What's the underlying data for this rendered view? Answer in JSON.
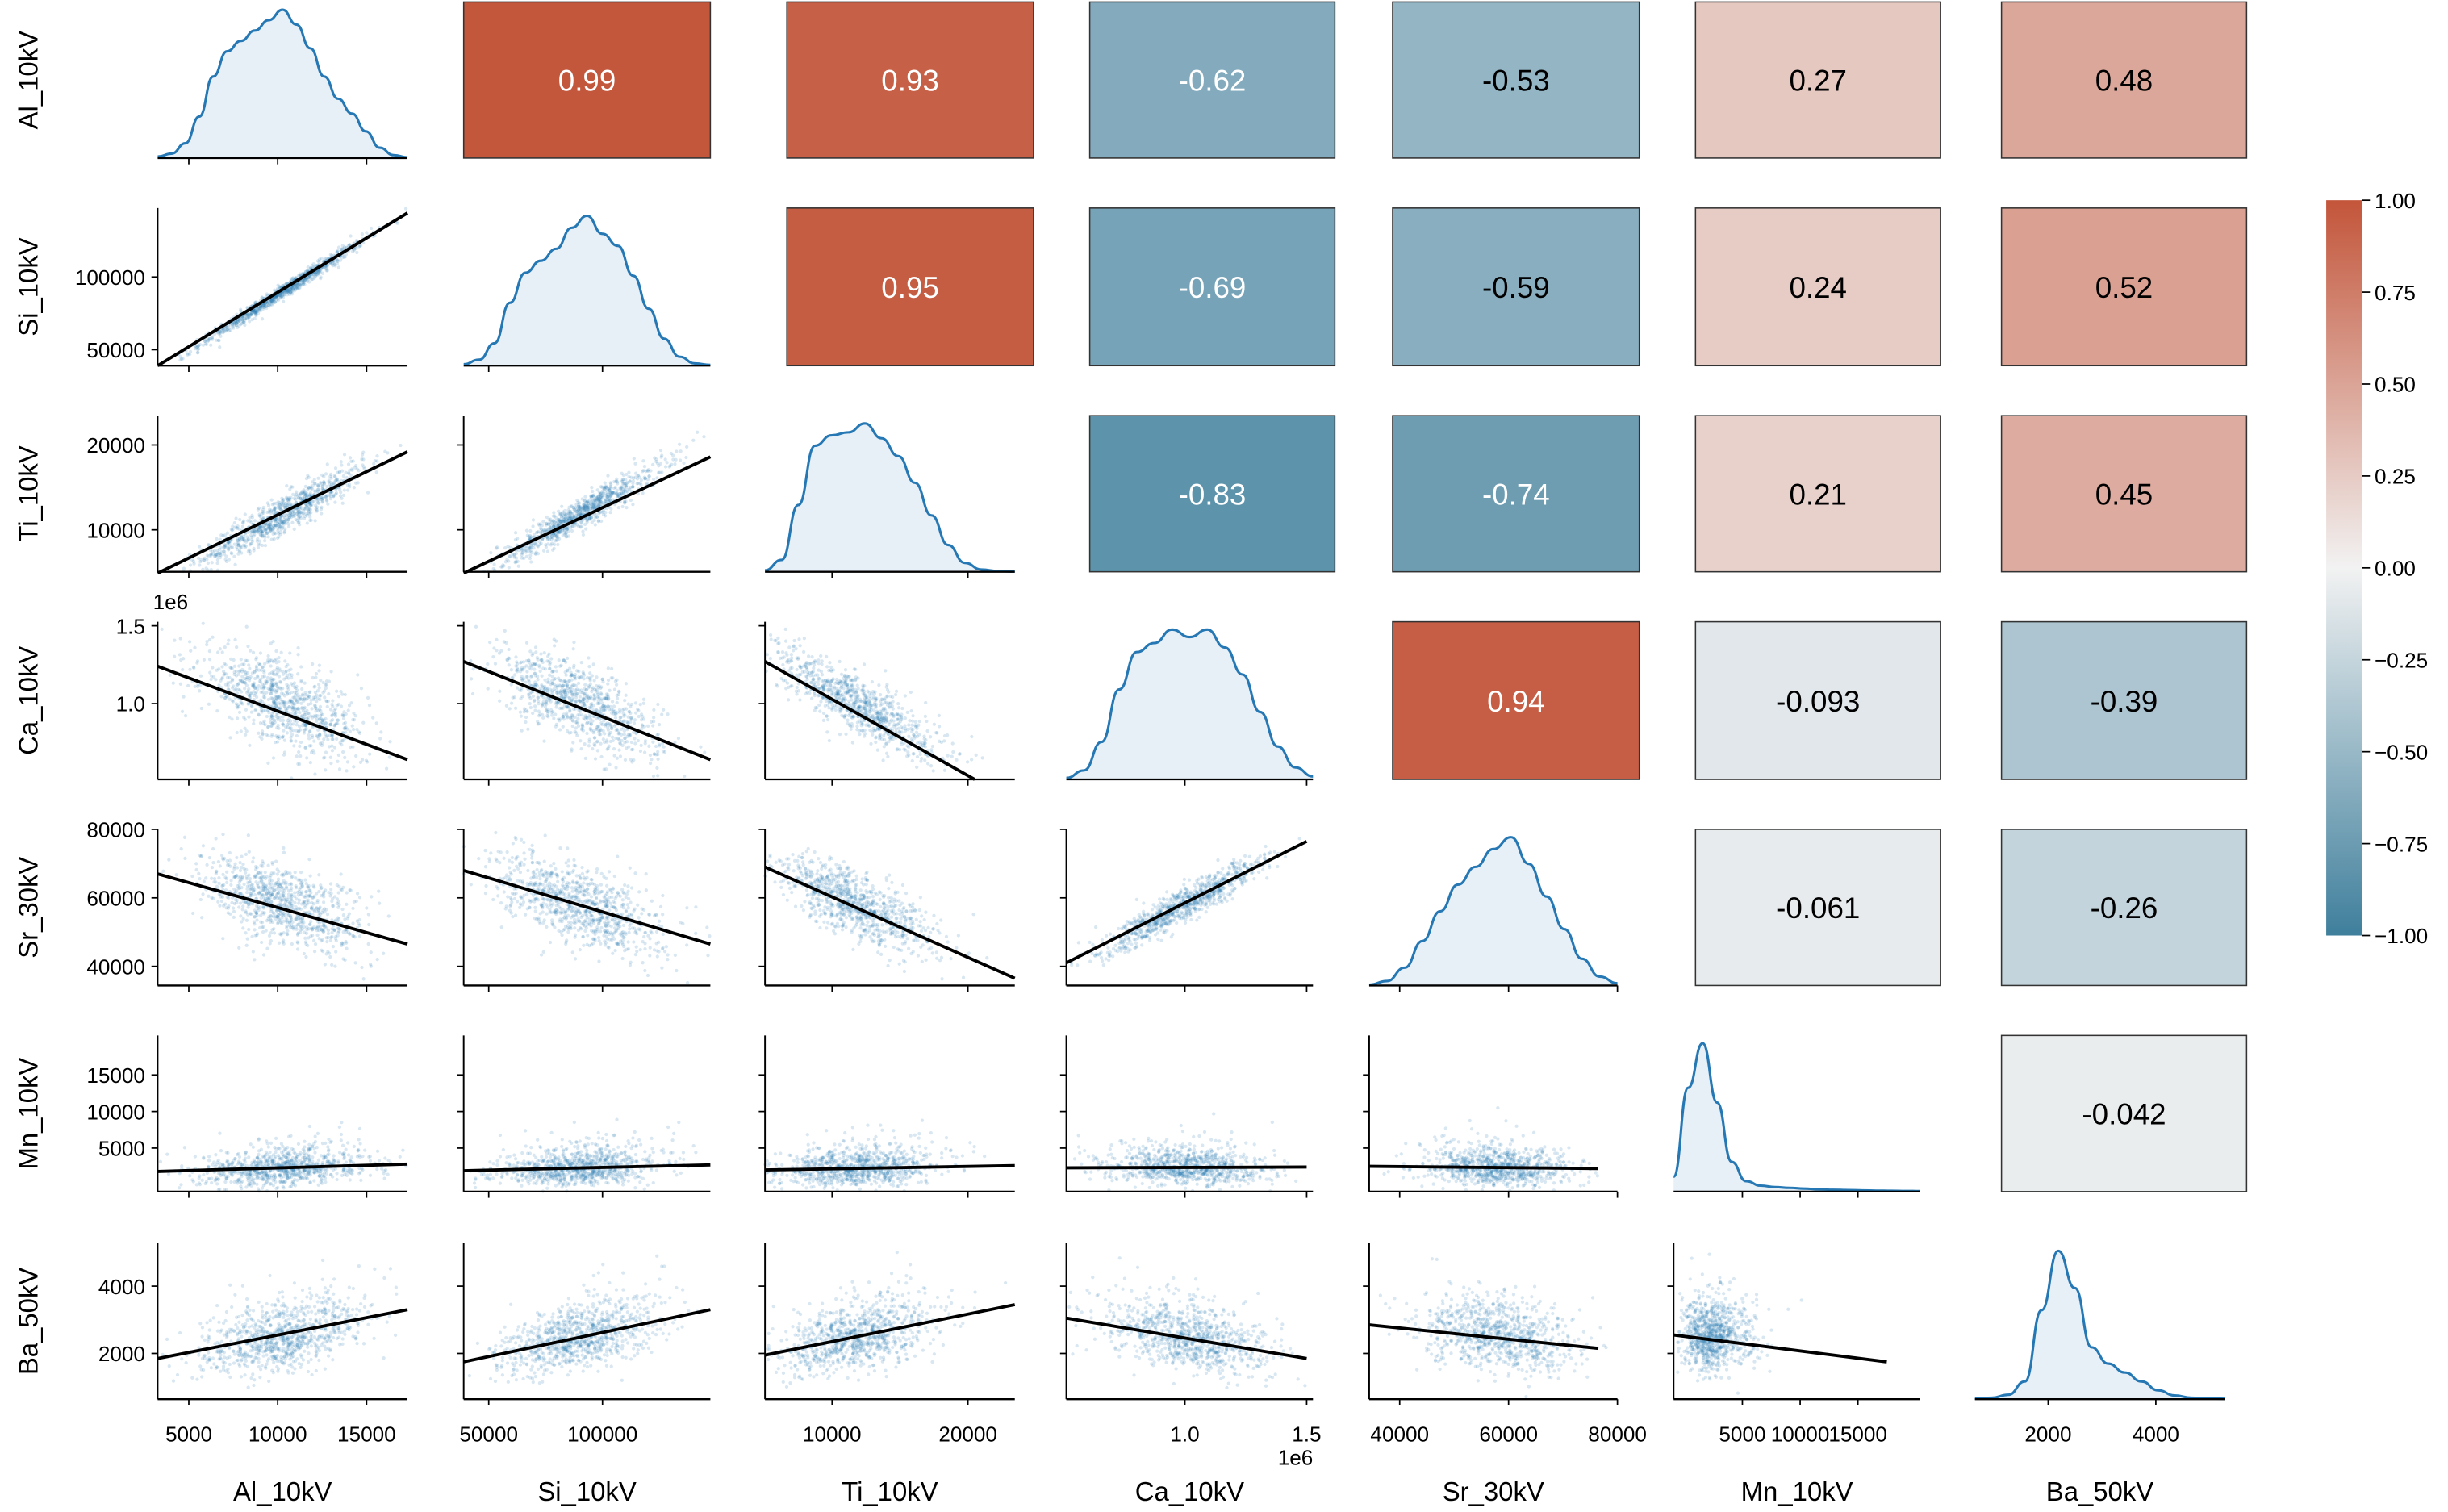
{
  "chart_data": {
    "type": "pairplot",
    "title": "",
    "variables": [
      "Al_10kV",
      "Si_10kV",
      "Ti_10kV",
      "Ca_10kV",
      "Sr_30kV",
      "Mn_10kV",
      "Ba_50kV"
    ],
    "axes": [
      {
        "name": "Al_10kV",
        "range": [
          3250,
          17300
        ],
        "ticks": [
          5000,
          10000,
          15000
        ],
        "tick_labels": [
          "5000",
          "10000",
          "15000"
        ],
        "offset_text": ""
      },
      {
        "name": "Si_10kV",
        "range": [
          39000,
          147400
        ],
        "ticks": [
          50000,
          100000
        ],
        "tick_labels": [
          "50000",
          "100000"
        ],
        "offset_text": ""
      },
      {
        "name": "Ti_10kV",
        "range": [
          5060,
          23450
        ],
        "ticks": [
          10000,
          20000
        ],
        "tick_labels": [
          "10000",
          "20000"
        ],
        "offset_text": ""
      },
      {
        "name": "Ca_10kV",
        "range": [
          513000,
          1526000
        ],
        "ticks": [
          1000000,
          1500000
        ],
        "tick_labels": [
          "1.0",
          "1.5"
        ],
        "y_ticks": [
          1000000,
          1500000
        ],
        "y_tick_labels": [
          "1.0",
          "1.5"
        ],
        "offset_text": "1e6"
      },
      {
        "name": "Sr_30kV",
        "range": [
          34400,
          80000
        ],
        "ticks": [
          40000,
          60000,
          80000
        ],
        "tick_labels": [
          "40000",
          "60000",
          "80000"
        ],
        "offset_text": ""
      },
      {
        "name": "Mn_10kV",
        "range": [
          -950,
          20400
        ],
        "ticks": [
          5000,
          10000,
          15000
        ],
        "tick_labels": [
          "5000",
          "10000",
          "15000"
        ],
        "offset_text": ""
      },
      {
        "name": "Ba_50kV",
        "range": [
          640,
          5280
        ],
        "ticks": [
          2000,
          4000
        ],
        "tick_labels": [
          "2000",
          "4000"
        ],
        "offset_text": ""
      }
    ],
    "distributions": [
      {
        "name": "Al_10kV",
        "mean": 10300,
        "sd": 2300,
        "skew": 0
      },
      {
        "name": "Si_10kV",
        "mean": 90000,
        "sd": 18000,
        "skew": 0
      },
      {
        "name": "Ti_10kV",
        "mean": 11800,
        "sd": 2800,
        "skew": 0.2
      },
      {
        "name": "Ca_10kV",
        "mean": 1000000,
        "sd": 170000,
        "skew": 0
      },
      {
        "name": "Sr_30kV",
        "mean": 58000,
        "sd": 7000,
        "skew": 0
      },
      {
        "name": "Mn_10kV",
        "mean": 2300,
        "sd": 900,
        "skew": 2.5
      },
      {
        "name": "Ba_50kV",
        "mean": 2500,
        "sd": 450,
        "skew": 1.2
      }
    ],
    "kde_profiles": [
      [
        0.01,
        0.03,
        0.1,
        0.28,
        0.55,
        0.72,
        0.79,
        0.86,
        0.93,
        1.0,
        0.9,
        0.74,
        0.55,
        0.4,
        0.3,
        0.18,
        0.07,
        0.02,
        0.005
      ],
      [
        0.01,
        0.04,
        0.15,
        0.42,
        0.62,
        0.7,
        0.78,
        0.92,
        1.0,
        0.88,
        0.8,
        0.6,
        0.38,
        0.18,
        0.06,
        0.015,
        0.005
      ],
      [
        0.01,
        0.08,
        0.45,
        0.85,
        0.92,
        0.94,
        1.0,
        0.9,
        0.78,
        0.6,
        0.38,
        0.18,
        0.06,
        0.015,
        0.005,
        0.002
      ],
      [
        0.01,
        0.06,
        0.25,
        0.6,
        0.85,
        0.91,
        1.0,
        0.95,
        1.0,
        0.88,
        0.7,
        0.45,
        0.22,
        0.08,
        0.02
      ],
      [
        0.005,
        0.03,
        0.12,
        0.3,
        0.5,
        0.68,
        0.8,
        0.92,
        1.0,
        0.82,
        0.6,
        0.38,
        0.18,
        0.06,
        0.015
      ],
      [
        0.1,
        0.7,
        1.0,
        0.6,
        0.2,
        0.07,
        0.04,
        0.03,
        0.025,
        0.02,
        0.015,
        0.012,
        0.01,
        0.008,
        0.006,
        0.005,
        0.004,
        0.003
      ],
      [
        0.005,
        0.01,
        0.03,
        0.12,
        0.6,
        1.0,
        0.75,
        0.35,
        0.24,
        0.18,
        0.12,
        0.06,
        0.025,
        0.01,
        0.005,
        0.003
      ]
    ],
    "correlations": [
      [
        1.0,
        0.99,
        0.93,
        -0.62,
        -0.53,
        0.27,
        0.48
      ],
      [
        0.99,
        1.0,
        0.95,
        -0.69,
        -0.59,
        0.24,
        0.52
      ],
      [
        0.93,
        0.95,
        1.0,
        -0.83,
        -0.74,
        0.21,
        0.45
      ],
      [
        -0.62,
        -0.69,
        -0.83,
        1.0,
        0.94,
        -0.093,
        -0.39
      ],
      [
        -0.53,
        -0.59,
        -0.74,
        0.94,
        1.0,
        -0.061,
        -0.26
      ],
      [
        0.27,
        0.24,
        0.21,
        -0.093,
        -0.061,
        1.0,
        -0.042
      ],
      [
        0.48,
        0.52,
        0.45,
        -0.39,
        -0.26,
        -0.042,
        1.0
      ]
    ],
    "correlation_labels": [
      [
        "",
        "0.99",
        "0.93",
        "-0.62",
        "-0.53",
        "0.27",
        "0.48"
      ],
      [
        "",
        "",
        "0.95",
        "-0.69",
        "-0.59",
        "0.24",
        "0.52"
      ],
      [
        "",
        "",
        "",
        "-0.83",
        "-0.74",
        "0.21",
        "0.45"
      ],
      [
        "",
        "",
        "",
        "",
        "0.94",
        "-0.093",
        "-0.39"
      ],
      [
        "",
        "",
        "",
        "",
        "",
        "-0.061",
        "-0.26"
      ],
      [
        "",
        "",
        "",
        "",
        "",
        "",
        "-0.042"
      ],
      [
        "",
        "",
        "",
        "",
        "",
        "",
        ""
      ]
    ],
    "regression_lines": [
      {
        "row": "Si_10kV",
        "col": "Al_10kV",
        "x": [
          3250,
          17300
        ],
        "y": [
          39000,
          144000
        ]
      },
      {
        "row": "Ti_10kV",
        "col": "Al_10kV",
        "x": [
          3250,
          17300
        ],
        "y": [
          4900,
          19200
        ]
      },
      {
        "row": "Ti_10kV",
        "col": "Si_10kV",
        "x": [
          39000,
          147400
        ],
        "y": [
          4900,
          18600
        ]
      },
      {
        "row": "Ca_10kV",
        "col": "Al_10kV",
        "x": [
          3250,
          17300
        ],
        "y": [
          1240000,
          640000
        ]
      },
      {
        "row": "Ca_10kV",
        "col": "Si_10kV",
        "x": [
          39000,
          147400
        ],
        "y": [
          1270000,
          640000
        ]
      },
      {
        "row": "Ca_10kV",
        "col": "Ti_10kV",
        "x": [
          5060,
          20500
        ],
        "y": [
          1270000,
          513000
        ]
      },
      {
        "row": "Sr_30kV",
        "col": "Al_10kV",
        "x": [
          3250,
          17300
        ],
        "y": [
          67000,
          46500
        ]
      },
      {
        "row": "Sr_30kV",
        "col": "Si_10kV",
        "x": [
          39000,
          147400
        ],
        "y": [
          68000,
          46500
        ]
      },
      {
        "row": "Sr_30kV",
        "col": "Ti_10kV",
        "x": [
          5060,
          23450
        ],
        "y": [
          69000,
          36500
        ]
      },
      {
        "row": "Sr_30kV",
        "col": "Ca_10kV",
        "x": [
          513000,
          1500000
        ],
        "y": [
          41000,
          76500
        ]
      },
      {
        "row": "Mn_10kV",
        "col": "Al_10kV",
        "x": [
          3250,
          17300
        ],
        "y": [
          1800,
          2800
        ]
      },
      {
        "row": "Mn_10kV",
        "col": "Si_10kV",
        "x": [
          39000,
          147400
        ],
        "y": [
          1900,
          2700
        ]
      },
      {
        "row": "Mn_10kV",
        "col": "Ti_10kV",
        "x": [
          5060,
          23450
        ],
        "y": [
          2000,
          2600
        ]
      },
      {
        "row": "Mn_10kV",
        "col": "Ca_10kV",
        "x": [
          513000,
          1500000
        ],
        "y": [
          2300,
          2400
        ]
      },
      {
        "row": "Mn_10kV",
        "col": "Sr_30kV",
        "x": [
          34400,
          76500
        ],
        "y": [
          2500,
          2200
        ]
      },
      {
        "row": "Ba_50kV",
        "col": "Al_10kV",
        "x": [
          3250,
          17300
        ],
        "y": [
          1850,
          3300
        ]
      },
      {
        "row": "Ba_50kV",
        "col": "Si_10kV",
        "x": [
          39000,
          147400
        ],
        "y": [
          1750,
          3300
        ]
      },
      {
        "row": "Ba_50kV",
        "col": "Ti_10kV",
        "x": [
          5060,
          23450
        ],
        "y": [
          1950,
          3450
        ]
      },
      {
        "row": "Ba_50kV",
        "col": "Ca_10kV",
        "x": [
          513000,
          1500000
        ],
        "y": [
          3050,
          1850
        ]
      },
      {
        "row": "Ba_50kV",
        "col": "Sr_30kV",
        "x": [
          34400,
          76500
        ],
        "y": [
          2850,
          2150
        ]
      },
      {
        "row": "Ba_50kV",
        "col": "Mn_10kV",
        "x": [
          -950,
          17500
        ],
        "y": [
          2550,
          1750
        ]
      }
    ],
    "colorbar": {
      "range": [
        -1.0,
        1.0
      ],
      "ticks": [
        1.0,
        0.75,
        0.5,
        0.25,
        0.0,
        -0.25,
        -0.5,
        -0.75,
        -1.0
      ],
      "tick_labels": [
        "1.00",
        "0.75",
        "0.50",
        "0.25",
        "0.00",
        "−0.25",
        "−0.50",
        "−0.75",
        "−1.00"
      ],
      "colormap": {
        "neg": "#3f7f9c",
        "mid": "#f2f2f2",
        "pos": "#c3553a"
      },
      "placement": "right"
    },
    "colors": {
      "scatter": "#2678b4",
      "kde_line": "#2678b4",
      "kde_fill": "#e7eff7",
      "reg_line": "#000000"
    },
    "grid": false
  }
}
